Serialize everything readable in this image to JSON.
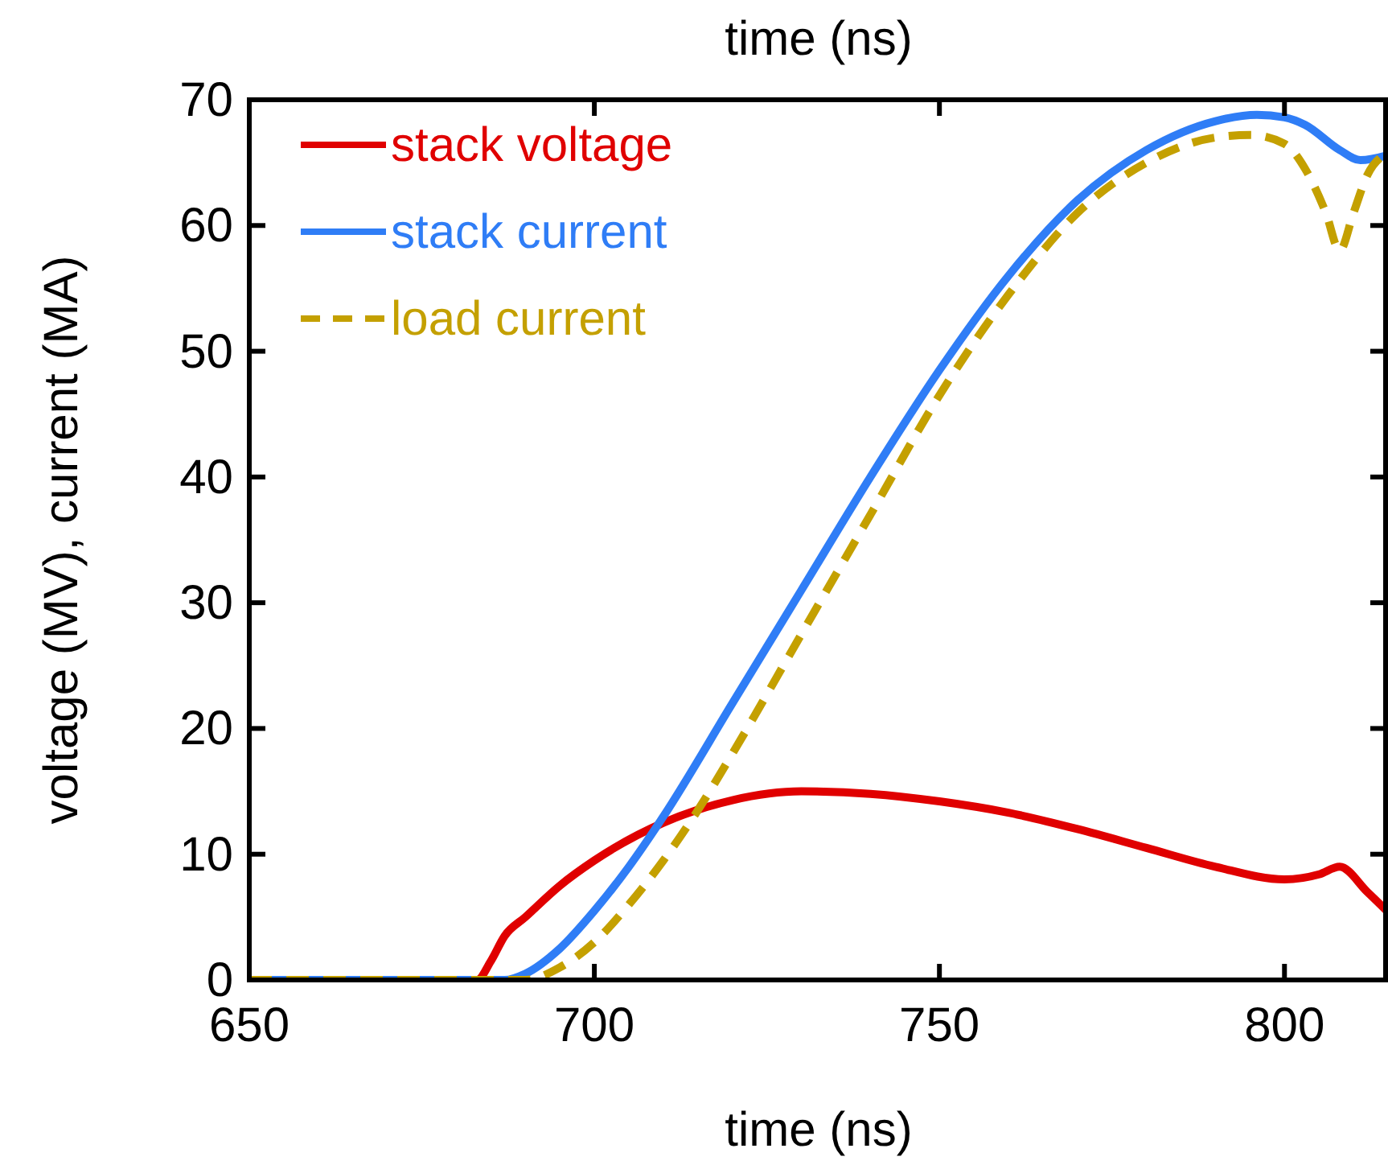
{
  "chart_data": {
    "type": "line",
    "xlabel": "time (ns)",
    "ylabel": "voltage (MV), current (MA)",
    "x2label": "time (ns)",
    "xlim": [
      650,
      815
    ],
    "xticks": [
      650,
      700,
      750,
      800
    ],
    "ylim": [
      0,
      70
    ],
    "yticks": [
      0,
      10,
      20,
      30,
      40,
      50,
      60,
      70
    ],
    "legend": "top left",
    "grid": false,
    "marker": "none",
    "series": [
      {
        "name": "stack voltage",
        "color": "#e00000",
        "line_style": "solid",
        "x": [
          650,
          683,
          685,
          687,
          690,
          695,
          700,
          710,
          720,
          730,
          740,
          750,
          760,
          770,
          780,
          790,
          800,
          805,
          808,
          812,
          815
        ],
        "values": [
          0,
          0,
          1.5,
          3.5,
          5,
          7.5,
          9.5,
          12.5,
          14.3,
          15,
          14.8,
          14.2,
          13.3,
          12,
          10.5,
          9,
          8,
          8.4,
          9,
          7,
          5.4
        ]
      },
      {
        "name": "stack current",
        "color": "#2f7df6",
        "line_style": "solid",
        "x": [
          650,
          687,
          690,
          695,
          700,
          705,
          710,
          720,
          730,
          740,
          750,
          760,
          770,
          780,
          790,
          796,
          800,
          803,
          808,
          811,
          815
        ],
        "values": [
          0,
          0,
          0.5,
          2.5,
          5.5,
          9,
          13,
          22,
          31,
          40,
          48.5,
          56,
          62,
          66,
          68.3,
          68.8,
          68.6,
          68,
          66,
          65.2,
          65.6
        ]
      },
      {
        "name": "load current",
        "color": "#c4a000",
        "line_style": "dashed",
        "x": [
          650,
          690,
          695,
          700,
          705,
          710,
          715,
          720,
          730,
          740,
          750,
          760,
          770,
          780,
          790,
          795,
          800,
          803,
          806,
          808,
          810,
          812,
          815
        ],
        "values": [
          0,
          0,
          1,
          3,
          6,
          9.5,
          13.5,
          18,
          27.5,
          37,
          46.5,
          54.5,
          61,
          65,
          67,
          67.2,
          66.5,
          64.5,
          61,
          58,
          61,
          64,
          65.8
        ]
      }
    ]
  }
}
